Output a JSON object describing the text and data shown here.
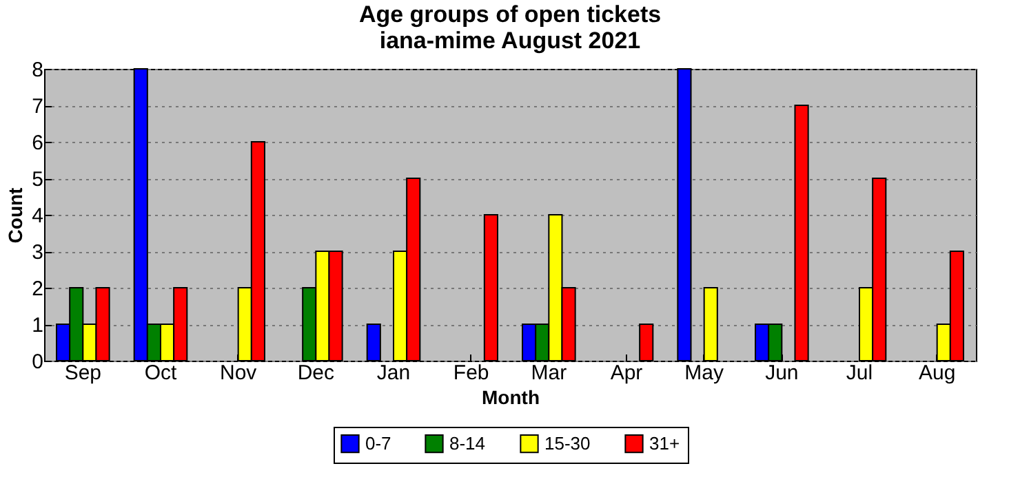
{
  "chart_data": {
    "type": "bar",
    "title": "Age groups of open tickets\niana-mime August 2021",
    "xlabel": "Month",
    "ylabel": "Count",
    "categories": [
      "Sep",
      "Oct",
      "Nov",
      "Dec",
      "Jan",
      "Feb",
      "Mar",
      "Apr",
      "May",
      "Jun",
      "Jul",
      "Aug"
    ],
    "series": [
      {
        "name": "0-7",
        "color": "#0000ff",
        "values": [
          1,
          8,
          0,
          0,
          1,
          0,
          1,
          0,
          8,
          1,
          0,
          0
        ]
      },
      {
        "name": "8-14",
        "color": "#008000",
        "values": [
          2,
          1,
          0,
          2,
          0,
          0,
          1,
          0,
          0,
          1,
          0,
          0
        ]
      },
      {
        "name": "15-30",
        "color": "#ffff00",
        "values": [
          1,
          1,
          2,
          3,
          3,
          0,
          4,
          0,
          2,
          0,
          2,
          1
        ]
      },
      {
        "name": "31+",
        "color": "#ff0000",
        "values": [
          2,
          2,
          6,
          3,
          5,
          4,
          2,
          1,
          0,
          7,
          5,
          3
        ]
      }
    ],
    "ylim": [
      0,
      8
    ],
    "yticks": [
      0,
      1,
      2,
      3,
      4,
      5,
      6,
      7,
      8
    ],
    "grid": "y",
    "legend": "bottom"
  }
}
